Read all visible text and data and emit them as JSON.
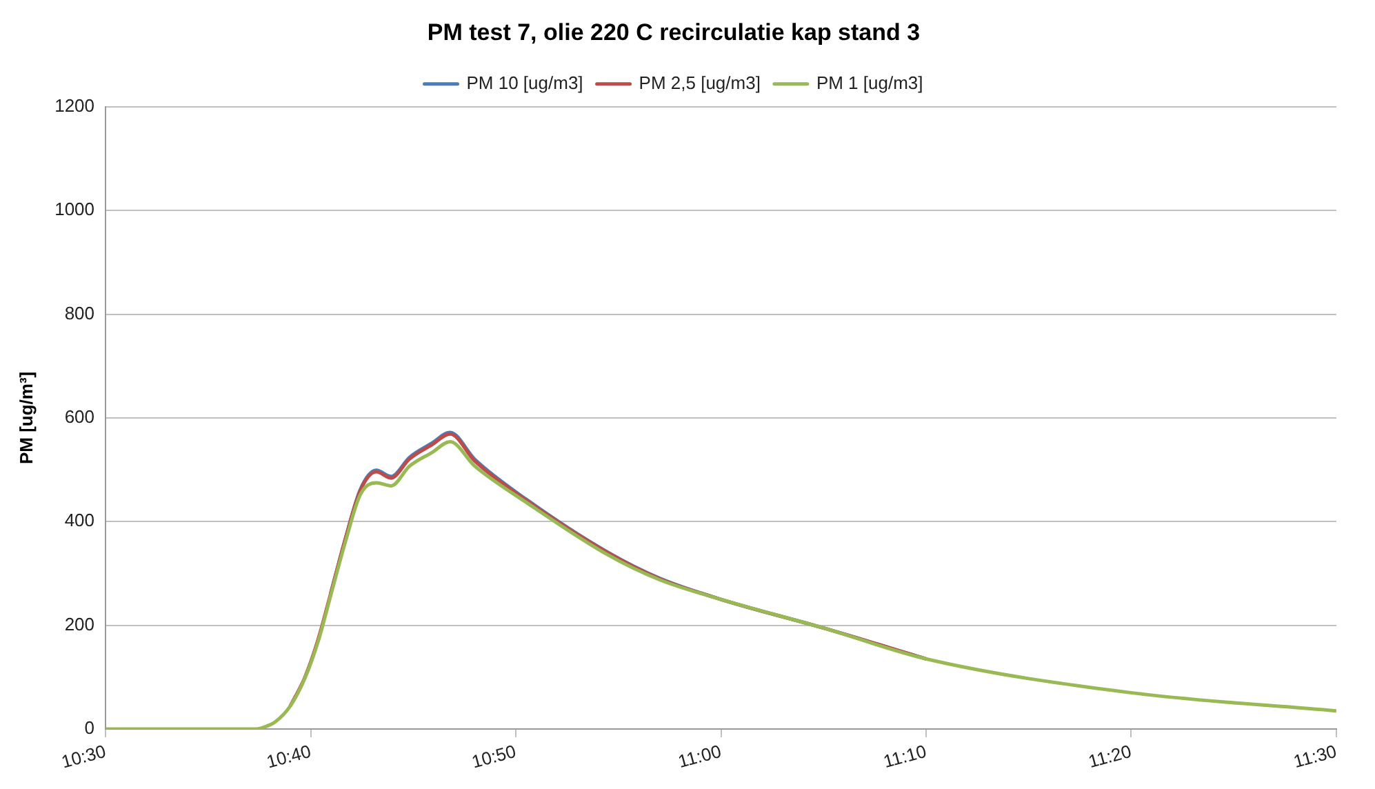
{
  "chart_data": {
    "type": "line",
    "title": "PM test 7, olie 220 C recirculatie kap stand 3",
    "ylabel": "PM [ug/m³]",
    "x": [
      10.5,
      10.622,
      10.628,
      10.638,
      10.65,
      10.662,
      10.673,
      10.683,
      10.695,
      10.707,
      10.72,
      10.732,
      10.747,
      10.765,
      10.78,
      10.8,
      10.84,
      10.908,
      10.95,
      11.0,
      11.083,
      11.167,
      11.333,
      11.5
    ],
    "series": [
      {
        "name": "PM 10 [ug/m3]",
        "color": "#4a7ebb",
        "values": [
          null,
          null,
          null,
          null,
          null,
          null,
          null,
          262,
          368,
          462,
          499,
          487,
          524,
          551,
          572,
          520,
          446,
          341,
          291,
          250,
          195,
          135,
          null,
          null
        ]
      },
      {
        "name": "PM 2,5 [ug/m3]",
        "color": "#be4b48",
        "values": [
          null,
          null,
          null,
          null,
          44,
          100,
          175,
          262,
          368,
          460,
          496,
          484,
          521,
          548,
          569,
          517,
          444,
          340,
          290,
          250,
          195,
          135,
          null,
          null
        ]
      },
      {
        "name": "PM 1 [ug/m3]",
        "color": "#98b954",
        "values": [
          0,
          0,
          3,
          14,
          44,
          98,
          171,
          258,
          362,
          452,
          475,
          469,
          507,
          533,
          554,
          507,
          440,
          336,
          288,
          250,
          195,
          135,
          70,
          35
        ]
      }
    ],
    "xlim": [
      10.5,
      11.5
    ],
    "xticks": [
      {
        "value": 10.5,
        "label": "10:30"
      },
      {
        "value": 10.6667,
        "label": "10:40"
      },
      {
        "value": 10.8333,
        "label": "10:50"
      },
      {
        "value": 11.0,
        "label": "11:00"
      },
      {
        "value": 11.1667,
        "label": "11:10"
      },
      {
        "value": 11.3333,
        "label": "11:20"
      },
      {
        "value": 11.5,
        "label": "11:30"
      }
    ],
    "ylim": [
      0,
      1200
    ],
    "yticks": [
      0,
      200,
      400,
      600,
      800,
      1000,
      1200
    ],
    "grid": "y",
    "legend": "top",
    "marker": "none",
    "line_style": "solid"
  }
}
